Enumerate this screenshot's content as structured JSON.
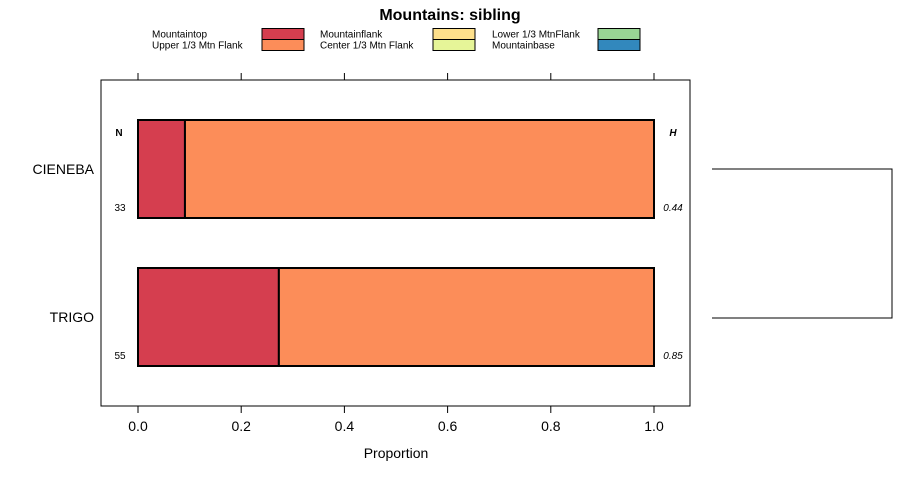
{
  "chart_data": {
    "type": "bar",
    "orientation": "horizontal",
    "stacked": true,
    "title": "Mountains: sibling",
    "xlabel": "Proportion",
    "ylabel": "",
    "xlim": [
      0,
      1
    ],
    "x_ticks": [
      "0.0",
      "0.2",
      "0.4",
      "0.6",
      "0.8",
      "1.0"
    ],
    "categories": [
      "CIENEBA",
      "TRIGO"
    ],
    "legend": [
      {
        "label": "Mountaintop",
        "color": "#d53e4f"
      },
      {
        "label": "Upper 1/3 Mtn Flank",
        "color": "#fc8d59"
      },
      {
        "label": "Mountainflank",
        "color": "#fee08b"
      },
      {
        "label": "Center 1/3 Mtn Flank",
        "color": "#e6f598"
      },
      {
        "label": "Lower 1/3 MtnFlank",
        "color": "#99d594"
      },
      {
        "label": "Mountainbase",
        "color": "#3288bd"
      }
    ],
    "series": [
      {
        "name": "Mountaintop",
        "values": [
          0.091,
          0.273
        ]
      },
      {
        "name": "Upper 1/3 Mtn Flank",
        "values": [
          0.909,
          0.727
        ]
      },
      {
        "name": "Mountainflank",
        "values": [
          0,
          0
        ]
      },
      {
        "name": "Center 1/3 Mtn Flank",
        "values": [
          0,
          0
        ]
      },
      {
        "name": "Lower 1/3 MtnFlank",
        "values": [
          0,
          0
        ]
      },
      {
        "name": "Mountainbase",
        "values": [
          0,
          0
        ]
      }
    ],
    "n_header": "N",
    "h_header": "H",
    "n_values": [
      "33",
      "55"
    ],
    "h_values": [
      "0.44",
      "0.85"
    ]
  }
}
